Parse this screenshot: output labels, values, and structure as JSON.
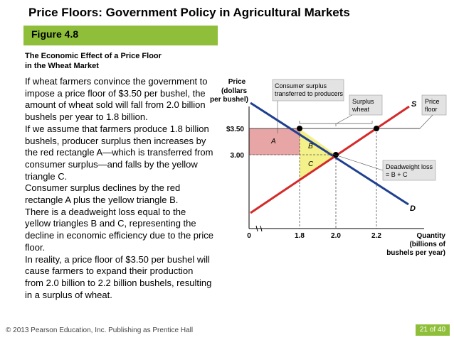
{
  "slide": {
    "title": "Price Floors: Government Policy in Agricultural Markets",
    "figure_label": "Figure 4.8",
    "caption_line1": "The Economic Effect of a Price Floor",
    "caption_line2": "in the Wheat Market",
    "paragraphs": [
      "If wheat farmers convince the government to impose a price floor of $3.50 per bushel, the amount of wheat sold will fall from 2.0 billion bushels per year to 1.8 billion.",
      "If we assume that farmers produce 1.8 billion bushels, producer surplus then increases by the red rectangle A—which is transferred from consumer surplus—and falls by the yellow triangle C.",
      "Consumer surplus declines by the red rectangle A plus the yellow triangle B.",
      "There is a deadweight loss equal to the yellow triangles B and C, representing the decline in economic efficiency due to the price floor.",
      "In reality, a price floor of $3.50 per bushel will cause farmers to expand their production from 2.0 billion to 2.2 billion bushels, resulting in a surplus of wheat."
    ],
    "footer": "© 2013 Pearson Education, Inc. Publishing as Prentice Hall",
    "page": "21 of 40",
    "accent_color": "#8fbf3a"
  },
  "graph": {
    "ylabel_line1": "Price",
    "ylabel_line2": "(dollars",
    "ylabel_line3": "per bushel)",
    "xlabel_line1": "Quantity",
    "xlabel_line2": "(billions of",
    "xlabel_line3": "bushels per year)",
    "y_ticks": [
      "$3.50",
      "3.00"
    ],
    "x_ticks": [
      "0",
      "1.8",
      "2.0",
      "2.2"
    ],
    "supply_label": "S",
    "demand_label": "D",
    "area_labels": [
      "A",
      "B",
      "C"
    ],
    "callouts": {
      "consumer_surplus_1": "Consumer surplus",
      "consumer_surplus_2": "transferred to producers",
      "surplus_1": "Surplus",
      "surplus_2": "wheat",
      "price_floor_1": "Price",
      "price_floor_2": "floor",
      "deadweight_1": "Deadweight loss",
      "deadweight_2": "= B + C"
    },
    "colors": {
      "demand": "#1f3f8f",
      "supply": "#d42a2a",
      "area_a": "#e8a5a5",
      "area_bc": "#f4f08a",
      "price_floor": "#444444"
    }
  },
  "chart_data": {
    "type": "line",
    "title": "",
    "xlabel": "Quantity (billions of bushels per year)",
    "ylabel": "Price (dollars per bushel)",
    "x_ticks": [
      0,
      1.8,
      2.0,
      2.2
    ],
    "y_ticks": [
      3.0,
      3.5
    ],
    "series": [
      {
        "name": "S",
        "points": [
          [
            1.8,
            2.6
          ],
          [
            2.0,
            3.0
          ],
          [
            2.2,
            3.5
          ]
        ]
      },
      {
        "name": "D",
        "points": [
          [
            1.8,
            3.5
          ],
          [
            2.0,
            3.0
          ],
          [
            2.2,
            2.5
          ]
        ]
      }
    ],
    "price_floor": 3.5,
    "equilibrium": {
      "quantity": 2.0,
      "price": 3.0
    },
    "areas": {
      "A": "rectangle between $3.00 and $3.50 up to 1.8",
      "B": "triangle",
      "C": "triangle"
    }
  }
}
